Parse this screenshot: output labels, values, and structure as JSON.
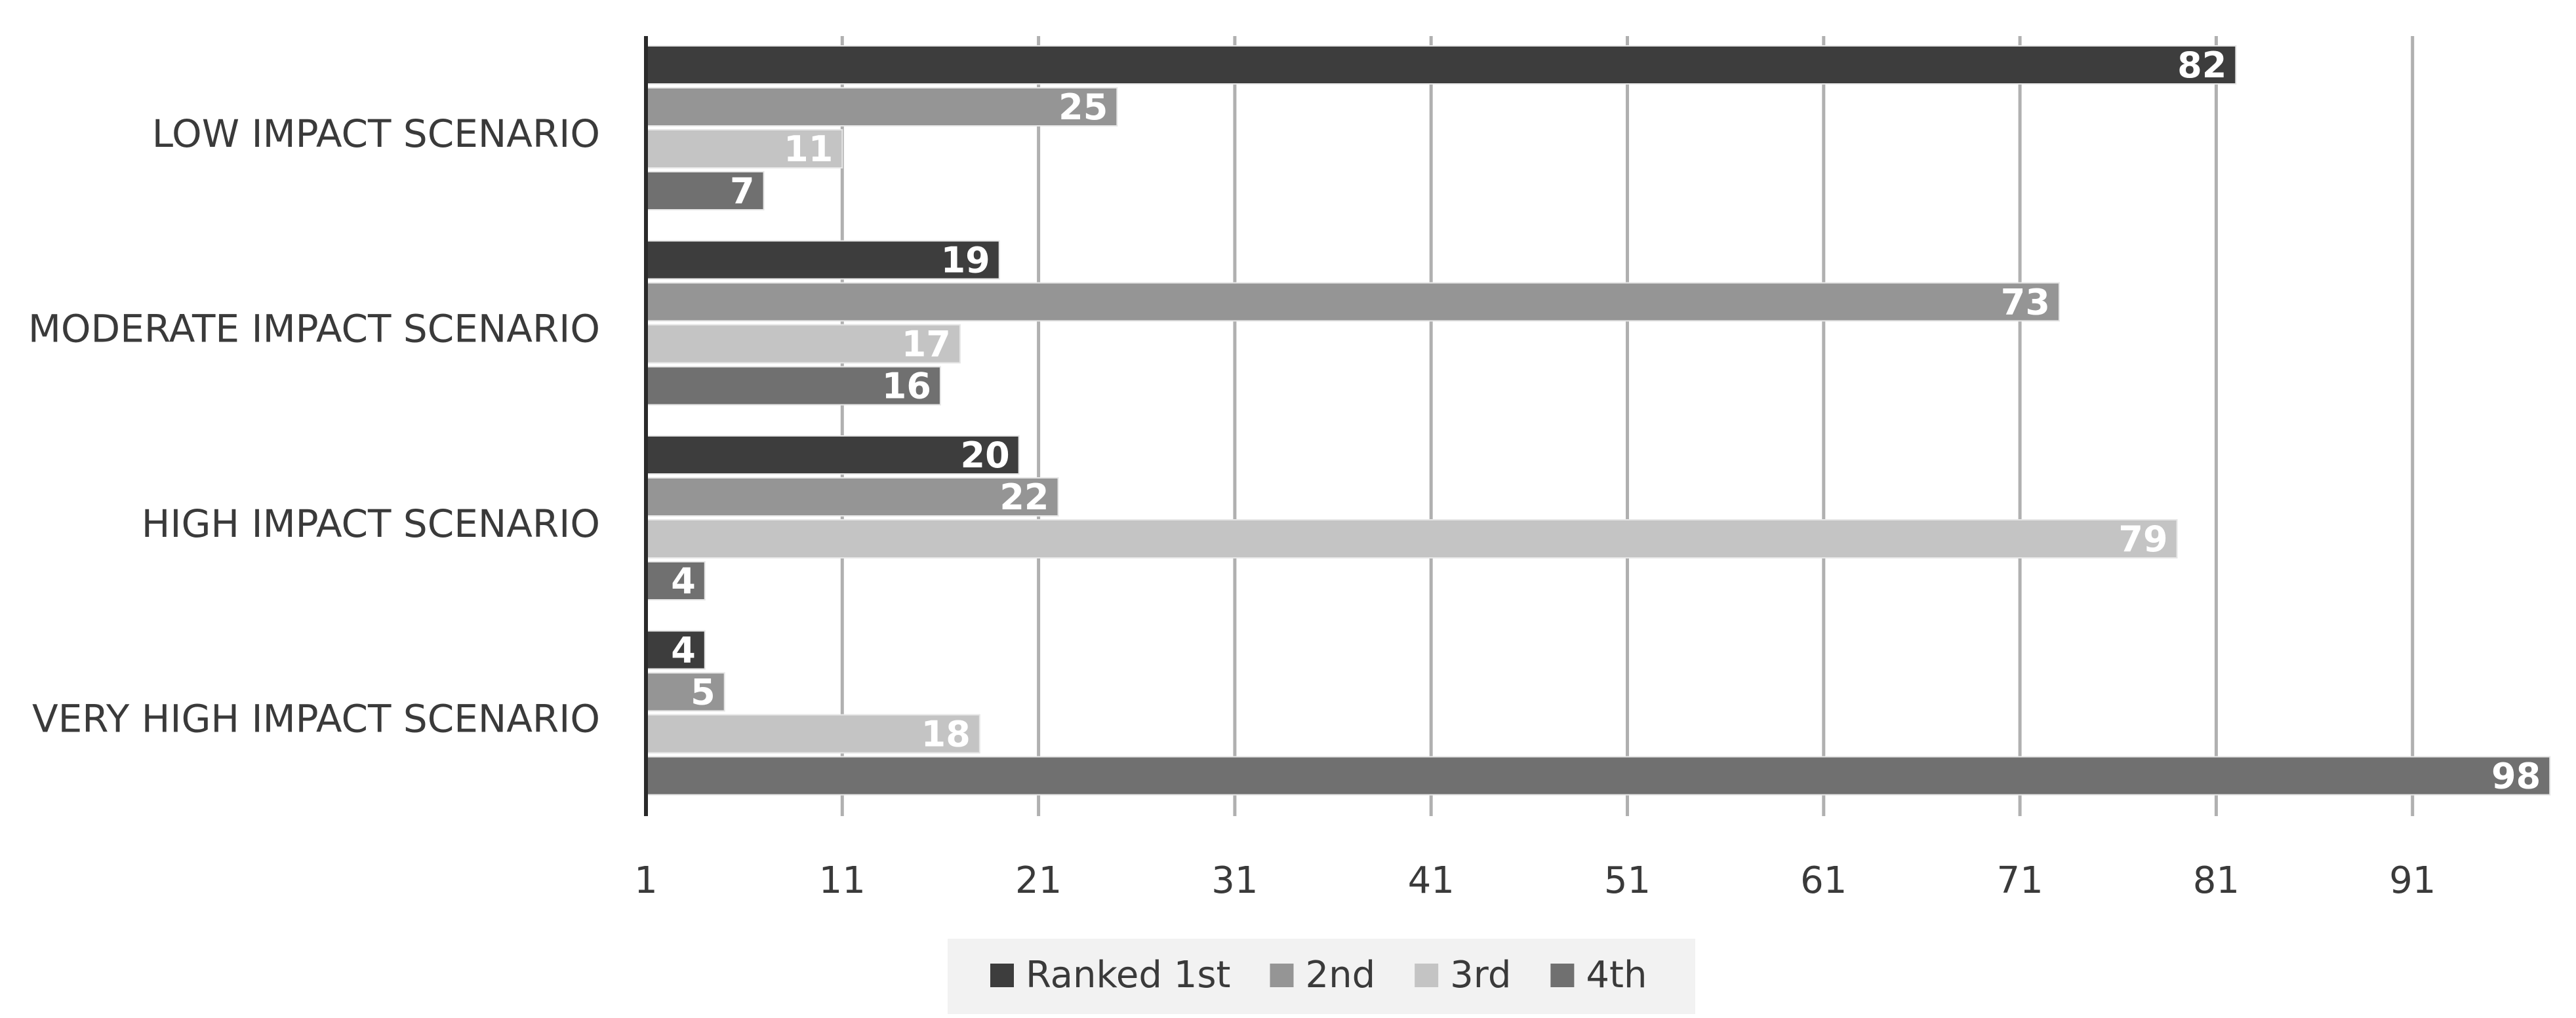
{
  "chart_data": {
    "type": "bar",
    "orientation": "horizontal",
    "categories": [
      "LOW IMPACT SCENARIO",
      "MODERATE IMPACT SCENARIO",
      "HIGH IMPACT SCENARIO",
      "VERY HIGH IMPACT SCENARIO"
    ],
    "series": [
      {
        "name": "Ranked 1st",
        "values": [
          82,
          19,
          20,
          4
        ],
        "color": "#3d3d3d"
      },
      {
        "name": "2nd",
        "values": [
          25,
          73,
          22,
          5
        ],
        "color": "#959595"
      },
      {
        "name": "3rd",
        "values": [
          11,
          17,
          79,
          18
        ],
        "color": "#c4c4c4"
      },
      {
        "name": "4th",
        "values": [
          7,
          16,
          4,
          98
        ],
        "color": "#707070"
      }
    ],
    "x_ticks": [
      "1",
      "11",
      "21",
      "31",
      "41",
      "51",
      "61",
      "71",
      "81",
      "91"
    ],
    "xlim": [
      1,
      98
    ],
    "title": "",
    "xlabel": "",
    "ylabel": "",
    "grid": "vertical",
    "data_labels": true,
    "legend_position": "bottom"
  }
}
